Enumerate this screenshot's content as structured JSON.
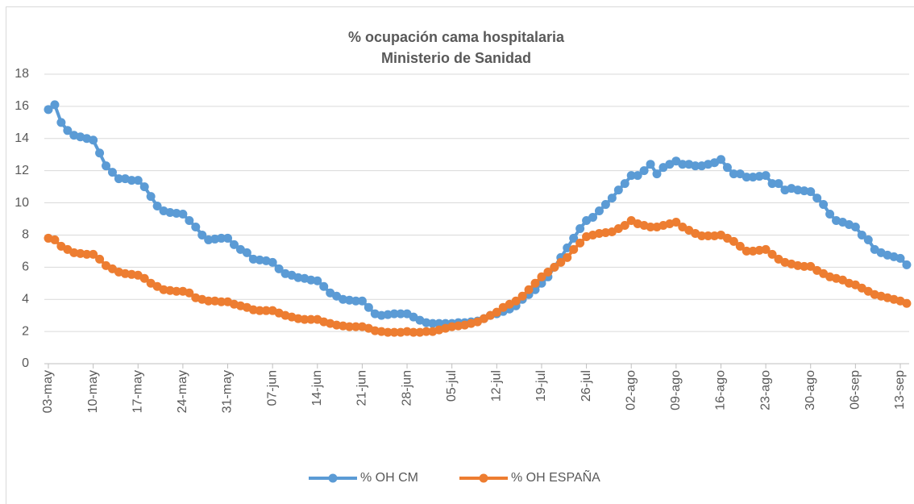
{
  "chart_data": {
    "type": "line",
    "title": "% ocupación cama hospitalaria",
    "subtitle": "Ministerio de Sanidad",
    "categories": [
      "03-may",
      null,
      null,
      null,
      null,
      null,
      null,
      "10-may",
      null,
      null,
      null,
      null,
      null,
      null,
      "17-may",
      null,
      null,
      null,
      null,
      null,
      null,
      "24-may",
      null,
      null,
      null,
      null,
      null,
      null,
      "31-may",
      null,
      null,
      null,
      null,
      null,
      null,
      "07-jun",
      null,
      null,
      null,
      null,
      null,
      null,
      "14-jun",
      null,
      null,
      null,
      null,
      null,
      null,
      "21-jun",
      null,
      null,
      null,
      null,
      null,
      null,
      "28-jun",
      null,
      null,
      null,
      null,
      null,
      null,
      "05-jul",
      null,
      null,
      null,
      null,
      null,
      null,
      "12-jul",
      null,
      null,
      null,
      null,
      null,
      null,
      "19-jul",
      null,
      null,
      null,
      null,
      null,
      null,
      "26-jul",
      null,
      null,
      null,
      null,
      null,
      null,
      "02-ago",
      null,
      null,
      null,
      null,
      null,
      null,
      "09-ago",
      null,
      null,
      null,
      null,
      null,
      null,
      "16-ago",
      null,
      null,
      null,
      null,
      null,
      null,
      "23-ago",
      null,
      null,
      null,
      null,
      null,
      null,
      "30-ago",
      null,
      null,
      null,
      null,
      null,
      null,
      "06-sep",
      null,
      null,
      null,
      null,
      null,
      null,
      "13-sep",
      null
    ],
    "series": [
      {
        "name": "% OH CM",
        "color": "#5b9bd5",
        "values": [
          15.8,
          16.1,
          15.0,
          14.5,
          14.2,
          14.1,
          14.0,
          13.9,
          13.1,
          12.3,
          11.9,
          11.5,
          11.5,
          11.4,
          11.4,
          11.0,
          10.4,
          9.8,
          9.5,
          9.4,
          9.35,
          9.3,
          8.9,
          8.5,
          8.0,
          7.7,
          7.75,
          7.8,
          7.8,
          7.4,
          7.1,
          6.9,
          6.5,
          6.45,
          6.4,
          6.3,
          5.9,
          5.6,
          5.5,
          5.35,
          5.3,
          5.2,
          5.15,
          4.8,
          4.4,
          4.2,
          4.0,
          3.95,
          3.9,
          3.9,
          3.5,
          3.1,
          3.0,
          3.05,
          3.1,
          3.1,
          3.1,
          2.9,
          2.7,
          2.55,
          2.5,
          2.5,
          2.5,
          2.5,
          2.55,
          2.55,
          2.6,
          2.65,
          2.8,
          3.0,
          3.1,
          3.25,
          3.4,
          3.6,
          4.0,
          4.3,
          4.6,
          5.0,
          5.4,
          6.0,
          6.6,
          7.2,
          7.8,
          8.4,
          8.9,
          9.1,
          9.5,
          9.9,
          10.3,
          10.8,
          11.2,
          11.7,
          11.7,
          12.0,
          12.4,
          11.8,
          12.2,
          12.4,
          12.6,
          12.4,
          12.4,
          12.3,
          12.3,
          12.4,
          12.5,
          12.7,
          12.2,
          11.8,
          11.8,
          11.6,
          11.6,
          11.65,
          11.7,
          11.2,
          11.2,
          10.8,
          10.9,
          10.8,
          10.75,
          10.7,
          10.3,
          9.9,
          9.3,
          8.9,
          8.8,
          8.65,
          8.5,
          8.0,
          7.7,
          7.1,
          6.9,
          6.75,
          6.65,
          6.55,
          6.15
        ]
      },
      {
        "name": "% OH ESPAÑA",
        "color": "#ed7d31",
        "values": [
          7.8,
          7.7,
          7.3,
          7.1,
          6.9,
          6.85,
          6.8,
          6.8,
          6.5,
          6.1,
          5.9,
          5.7,
          5.6,
          5.55,
          5.5,
          5.3,
          5.0,
          4.8,
          4.6,
          4.55,
          4.5,
          4.5,
          4.4,
          4.1,
          4.0,
          3.9,
          3.9,
          3.85,
          3.85,
          3.7,
          3.6,
          3.5,
          3.35,
          3.3,
          3.3,
          3.3,
          3.15,
          3.0,
          2.9,
          2.8,
          2.75,
          2.75,
          2.75,
          2.6,
          2.5,
          2.4,
          2.35,
          2.3,
          2.3,
          2.3,
          2.2,
          2.05,
          2.0,
          1.95,
          1.95,
          1.95,
          2.0,
          1.95,
          1.95,
          2.0,
          2.0,
          2.1,
          2.2,
          2.3,
          2.35,
          2.4,
          2.5,
          2.6,
          2.8,
          3.0,
          3.2,
          3.5,
          3.7,
          3.9,
          4.2,
          4.6,
          5.0,
          5.4,
          5.7,
          6.0,
          6.3,
          6.6,
          7.1,
          7.5,
          7.9,
          8.0,
          8.1,
          8.15,
          8.2,
          8.4,
          8.6,
          8.9,
          8.7,
          8.6,
          8.5,
          8.5,
          8.6,
          8.7,
          8.8,
          8.5,
          8.3,
          8.1,
          7.95,
          7.95,
          7.95,
          8.0,
          7.8,
          7.6,
          7.3,
          7.0,
          7.0,
          7.05,
          7.1,
          6.8,
          6.5,
          6.3,
          6.2,
          6.1,
          6.05,
          6.05,
          5.8,
          5.6,
          5.4,
          5.3,
          5.2,
          5.0,
          4.9,
          4.7,
          4.5,
          4.3,
          4.2,
          4.1,
          4.0,
          3.9,
          3.75
        ]
      }
    ],
    "ylim": [
      0,
      18
    ],
    "yticks": [
      0,
      2,
      4,
      6,
      8,
      10,
      12,
      14,
      16,
      18
    ],
    "grid": true,
    "legend": "bottom"
  }
}
